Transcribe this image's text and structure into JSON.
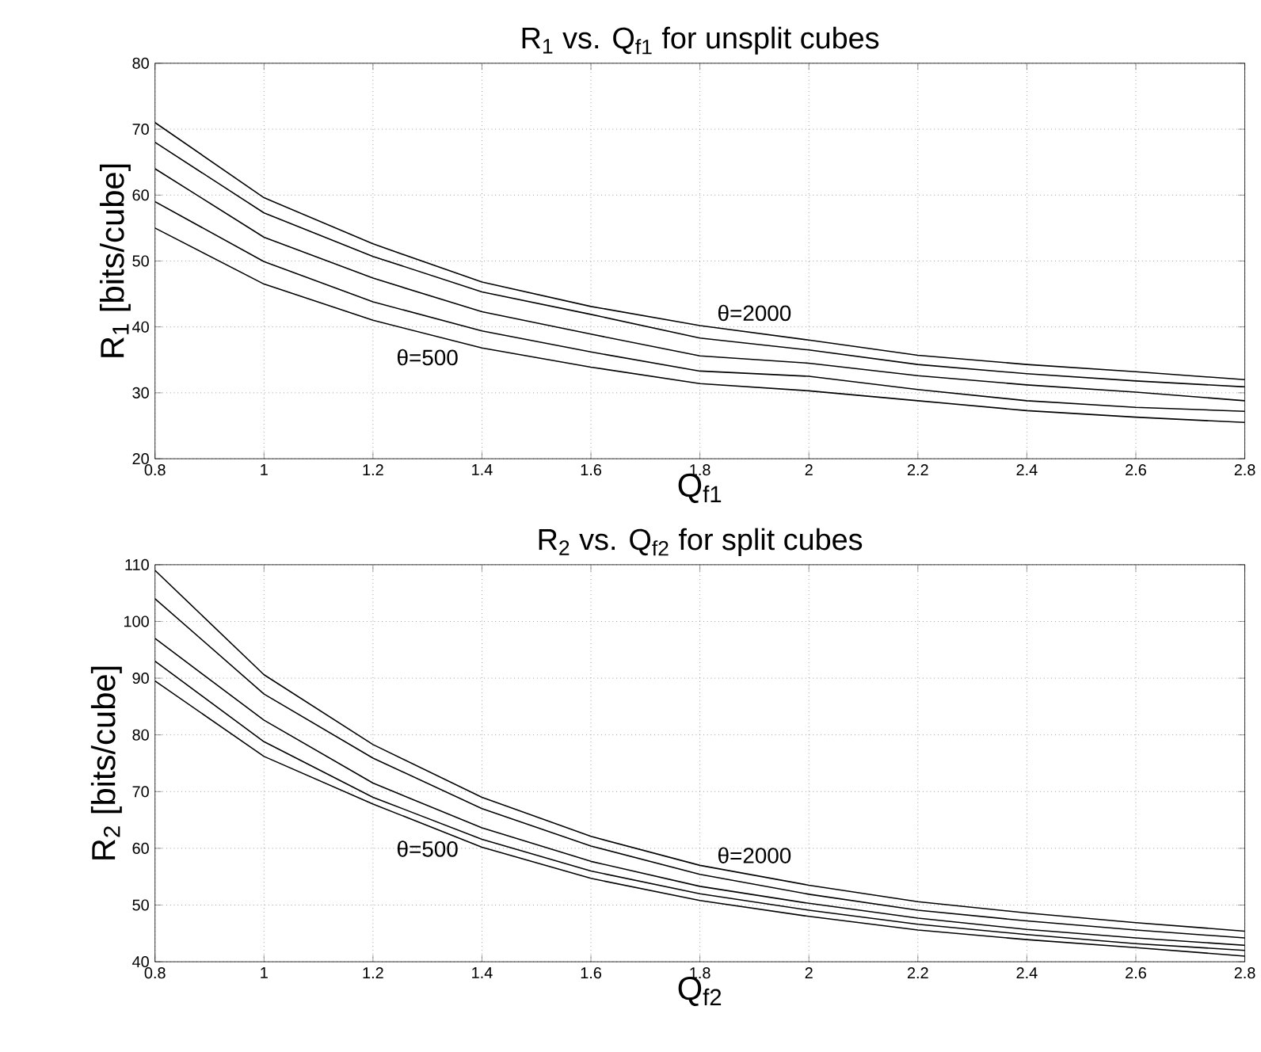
{
  "chart_data": [
    {
      "type": "line",
      "title": "R$_{1}$ vs. Q$_{f1}$ for unsplit cubes",
      "xlabel": "Q$_{f1}$",
      "ylabel": "R$_{1}$ [bits/cube]",
      "x": [
        0.8,
        1,
        1.2,
        1.4,
        1.6,
        1.8,
        2,
        2.2,
        2.4,
        2.6,
        2.8
      ],
      "series": [
        {
          "color": "#000000",
          "values": [
            71,
            59.6,
            52.6,
            46.8,
            43.1,
            40.2,
            38,
            35.7,
            34.3,
            33.2,
            32
          ]
        },
        {
          "color": "#000000",
          "values": [
            68,
            57.3,
            50.7,
            45.3,
            41.9,
            38.3,
            36.5,
            34.3,
            32.9,
            31.8,
            30.9
          ]
        },
        {
          "color": "#000000",
          "values": [
            64,
            53.6,
            47.4,
            42.3,
            38.9,
            35.6,
            34.5,
            32.6,
            31.2,
            30.1,
            28.8
          ]
        },
        {
          "color": "#000000",
          "values": [
            59,
            49.9,
            43.8,
            39.4,
            36.2,
            33.3,
            32.5,
            30.5,
            28.8,
            27.8,
            27.2
          ]
        },
        {
          "color": "#000000",
          "values": [
            55,
            46.5,
            41,
            36.8,
            33.9,
            31.4,
            30.3,
            28.8,
            27.3,
            26.3,
            25.5
          ]
        }
      ],
      "annotations": [
        "θ=500",
        "θ=2000"
      ],
      "xlim": [
        0.8,
        2.8
      ],
      "ylim": [
        20,
        80
      ],
      "xticks": [
        0.8,
        1,
        1.2,
        1.4,
        1.6,
        1.8,
        2,
        2.2,
        2.4,
        2.6,
        2.8
      ],
      "yticks": [
        20,
        30,
        40,
        50,
        60,
        70,
        80
      ],
      "grid": true
    },
    {
      "type": "line",
      "title": "R$_{2}$ vs. Q$_{f2}$ for split cubes",
      "xlabel": "Q$_{f2}$",
      "ylabel": "R$_{2}$ [bits/cube]",
      "x": [
        0.8,
        1,
        1.2,
        1.4,
        1.6,
        1.8,
        2,
        2.2,
        2.4,
        2.6,
        2.8
      ],
      "series": [
        {
          "color": "#000000",
          "values": [
            109,
            90.6,
            78.3,
            69,
            62.1,
            57,
            53.5,
            50.6,
            48.6,
            46.9,
            45.4
          ]
        },
        {
          "color": "#000000",
          "values": [
            104,
            87.2,
            75.9,
            67,
            60.4,
            55.4,
            51.9,
            49.1,
            47.2,
            45.6,
            44.2
          ]
        },
        {
          "color": "#000000",
          "values": [
            97,
            82.6,
            71.5,
            63.6,
            57.7,
            53.3,
            50.3,
            47.7,
            45.7,
            44.2,
            42.9
          ]
        },
        {
          "color": "#000000",
          "values": [
            93,
            78.8,
            69,
            61.6,
            56,
            52,
            49.1,
            46.6,
            44.8,
            43.2,
            42
          ]
        },
        {
          "color": "#000000",
          "values": [
            89.5,
            76.2,
            67.8,
            60.2,
            54.7,
            50.8,
            48,
            45.6,
            43.9,
            42.5,
            41
          ]
        }
      ],
      "annotations": [
        "θ=500",
        "θ=2000"
      ],
      "xlim": [
        0.8,
        2.8
      ],
      "ylim": [
        40,
        110
      ],
      "xticks": [
        0.8,
        1,
        1.2,
        1.4,
        1.6,
        1.8,
        2,
        2.2,
        2.4,
        2.6,
        2.8
      ],
      "yticks": [
        40,
        50,
        60,
        70,
        80,
        90,
        100,
        110
      ],
      "grid": true
    }
  ]
}
